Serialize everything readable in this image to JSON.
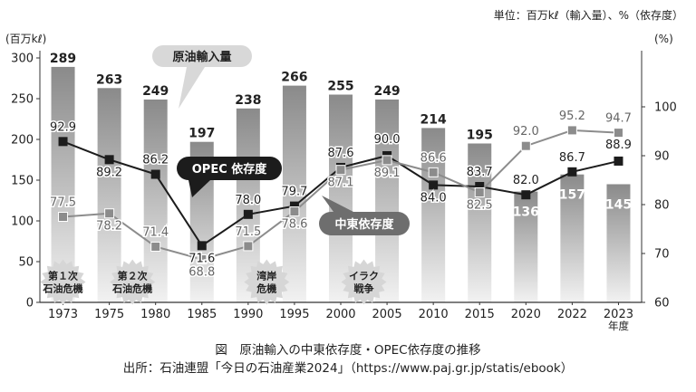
{
  "unit_note": "単位：百万kℓ（輸入量）、%（依存度）",
  "caption": "図　原油輸入の中東依存度・OPEC依存度の推移",
  "source": "出所：石油連盟「今日の石油産業2024」（https://www.paj.gr.jp/statis/ebook）",
  "chart_data": {
    "type": "bar",
    "categories": [
      "1973",
      "1975",
      "1980",
      "1985",
      "1990",
      "1995",
      "2000",
      "2005",
      "2010",
      "2015",
      "2020",
      "2022",
      "2023"
    ],
    "category_suffix_last": "年度",
    "y_left": {
      "unit_label": "(百万kℓ)",
      "ylim": [
        0,
        300
      ],
      "ticks": [
        0,
        50,
        100,
        150,
        200,
        250,
        300
      ]
    },
    "y_right": {
      "unit_label": "(%)",
      "ylim": [
        60,
        110
      ],
      "ticks": [
        60,
        70,
        80,
        90,
        100
      ]
    },
    "grid": false,
    "bars": {
      "name": "原油輸入量",
      "values": [
        289,
        263,
        249,
        197,
        238,
        266,
        255,
        249,
        214,
        195,
        136,
        157,
        145
      ],
      "color_top": "#8a8a8a",
      "color_bottom": "#f2f2f2"
    },
    "series": [
      {
        "name": "OPEC 依存度",
        "axis": "right",
        "color": "#1c1c1c",
        "values": [
          92.9,
          89.2,
          86.2,
          71.6,
          78.0,
          79.7,
          87.6,
          90.0,
          84.0,
          83.7,
          82.0,
          86.7,
          88.9
        ]
      },
      {
        "name": "中東依存度",
        "axis": "right",
        "color": "#8c8c8c",
        "values": [
          77.5,
          78.2,
          71.4,
          68.8,
          71.5,
          78.6,
          87.1,
          89.1,
          86.6,
          82.5,
          92.0,
          95.2,
          94.7
        ]
      }
    ],
    "annotations": [
      {
        "text": [
          "第１次",
          "石油危機"
        ],
        "category": "1973",
        "left_value": 25
      },
      {
        "text": [
          "第２次",
          "石油危機"
        ],
        "category": "1975",
        "left_value": 25,
        "shift": 0.5
      },
      {
        "text": [
          "湾岸",
          "危機"
        ],
        "category": "1990",
        "left_value": 25,
        "shift": 0.4
      },
      {
        "text": [
          "イラク",
          "戦争"
        ],
        "category": "2000",
        "left_value": 25,
        "shift": 0.5
      }
    ]
  }
}
